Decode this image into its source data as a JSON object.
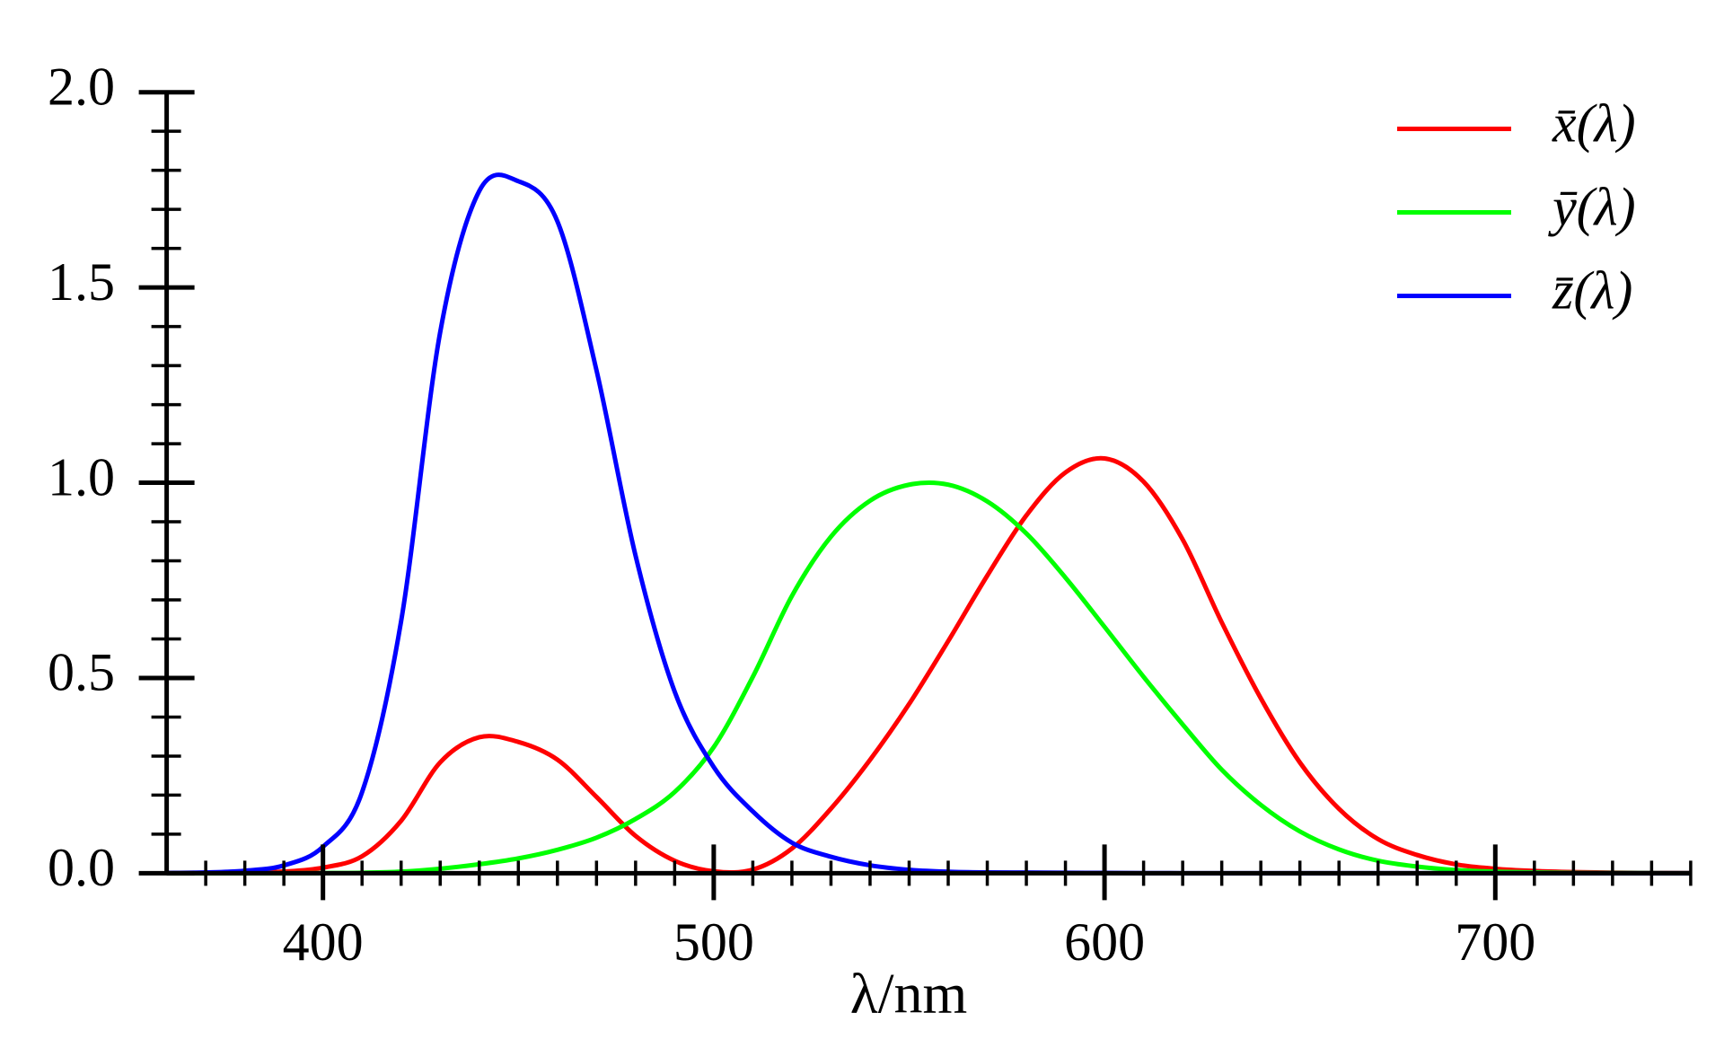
{
  "chart_data": {
    "type": "line",
    "x_label": "λ/nm",
    "x": [
      360,
      370,
      380,
      390,
      400,
      410,
      420,
      430,
      440,
      450,
      460,
      470,
      480,
      490,
      500,
      510,
      520,
      530,
      540,
      550,
      560,
      570,
      580,
      590,
      600,
      610,
      620,
      630,
      640,
      650,
      660,
      670,
      680,
      690,
      700,
      710,
      720,
      730,
      740,
      750
    ],
    "series": [
      {
        "name": "x̄(λ)",
        "color": "#ff0000",
        "values": [
          0.00013,
          0.000415,
          0.001368,
          0.004243,
          0.01431,
          0.04351,
          0.13438,
          0.2839,
          0.34828,
          0.3362,
          0.2908,
          0.19536,
          0.09564,
          0.03201,
          0.0049,
          0.0093,
          0.06327,
          0.1655,
          0.2904,
          0.43345,
          0.5945,
          0.7621,
          0.9163,
          1.0263,
          1.0622,
          1.0026,
          0.85445,
          0.6424,
          0.4479,
          0.2835,
          0.1649,
          0.0874,
          0.04677,
          0.0227,
          0.011359,
          0.00579,
          0.002899,
          0.00144,
          0.00069,
          0.000332
        ]
      },
      {
        "name": "ȳ(λ)",
        "color": "#00ff00",
        "values": [
          4e-06,
          1.2e-05,
          3.9e-05,
          0.00012,
          0.000396,
          0.00121,
          0.004,
          0.0116,
          0.023,
          0.038,
          0.06,
          0.09098,
          0.13902,
          0.20802,
          0.323,
          0.503,
          0.71,
          0.862,
          0.954,
          0.99495,
          0.995,
          0.952,
          0.87,
          0.757,
          0.631,
          0.503,
          0.381,
          0.265,
          0.175,
          0.107,
          0.061,
          0.032,
          0.017,
          0.00821,
          0.004102,
          0.002091,
          0.001047,
          0.00052,
          0.000249,
          0.00012
        ]
      },
      {
        "name": "z̄(λ)",
        "color": "#0000ff",
        "values": [
          0.000606,
          0.001946,
          0.00645,
          0.02005,
          0.06785,
          0.2074,
          0.6456,
          1.3856,
          1.74706,
          1.77211,
          1.6692,
          1.28764,
          0.81295,
          0.46518,
          0.272,
          0.1582,
          0.07825,
          0.04216,
          0.0203,
          0.00875,
          0.0039,
          0.0021,
          0.00165,
          0.0011,
          0.0008,
          0.00034,
          0.00019,
          5e-05,
          2e-05,
          0,
          0,
          0,
          0,
          0,
          0,
          0,
          0,
          0,
          0,
          0
        ]
      }
    ],
    "xlim": [
      360,
      750
    ],
    "ylim": [
      0,
      2
    ],
    "xticks": [
      400,
      500,
      600,
      700
    ],
    "yticks": [
      {
        "value": 0,
        "label": "0.0"
      },
      0.5,
      {
        "value": 1,
        "label": "1.0"
      },
      1.5,
      {
        "value": 2,
        "label": "2.0"
      }
    ],
    "xminorticks": [
      370,
      380,
      390,
      410,
      420,
      430,
      440,
      450,
      460,
      470,
      480,
      490,
      510,
      520,
      530,
      540,
      550,
      560,
      570,
      580,
      590,
      610,
      620,
      630,
      640,
      650,
      660,
      670,
      680,
      690,
      710,
      720,
      730,
      740,
      750
    ],
    "yminorticks": [
      0.1,
      0.2,
      0.3,
      0.4,
      0.6,
      0.7,
      0.8,
      0.9,
      1.1,
      1.2,
      1.3,
      1.4,
      1.6,
      1.7,
      1.8,
      1.9
    ],
    "grid": false,
    "legend": "upper right"
  }
}
